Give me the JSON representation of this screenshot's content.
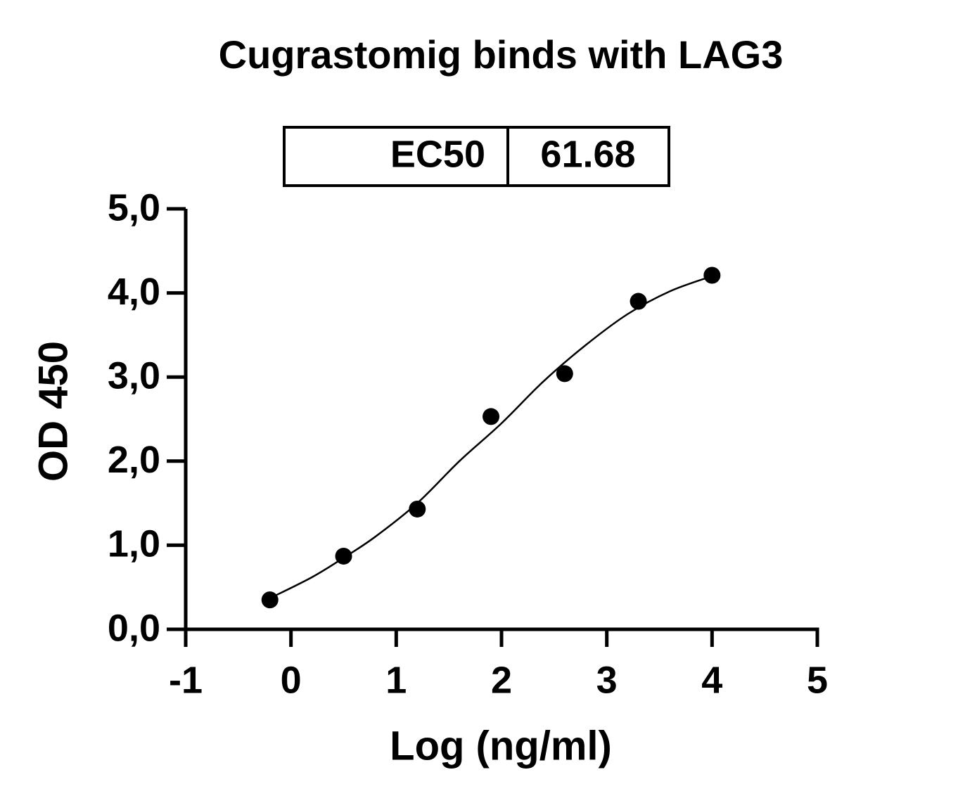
{
  "chart_data": {
    "type": "scatter",
    "title": "Cugrastomig binds with LAG3",
    "xlabel": "Log (ng/ml)",
    "ylabel": "OD 450",
    "ec50_table": {
      "label": "EC50",
      "value": 61.68
    },
    "series": [
      {
        "name": "data",
        "kind": "points",
        "color": "#000000",
        "x": [
          -0.2,
          0.5,
          1.2,
          1.9,
          2.6,
          3.3,
          4.0
        ],
        "values": [
          0.35,
          0.87,
          1.43,
          2.53,
          3.04,
          3.9,
          4.21
        ]
      },
      {
        "name": "fit",
        "kind": "line",
        "color": "#000000",
        "x": [
          -0.2,
          0.2,
          0.5,
          0.8,
          1.2,
          1.6,
          2.0,
          2.4,
          2.8,
          3.2,
          3.6,
          4.0
        ],
        "values": [
          0.37,
          0.62,
          0.85,
          1.1,
          1.5,
          2.0,
          2.45,
          2.95,
          3.38,
          3.75,
          4.02,
          4.2
        ]
      }
    ],
    "xlim": [
      -1,
      5
    ],
    "xticks": [
      -1,
      0,
      1,
      2,
      3,
      4,
      5
    ],
    "ylim": [
      0,
      5
    ],
    "yticks": [
      {
        "value": 0,
        "label": "0,0"
      },
      {
        "value": 1,
        "label": "1,0"
      },
      {
        "value": 2,
        "label": "2,0"
      },
      {
        "value": 3,
        "label": "3,0"
      },
      {
        "value": 4,
        "label": "4,0"
      },
      {
        "value": 5,
        "label": "5,0"
      }
    ]
  }
}
